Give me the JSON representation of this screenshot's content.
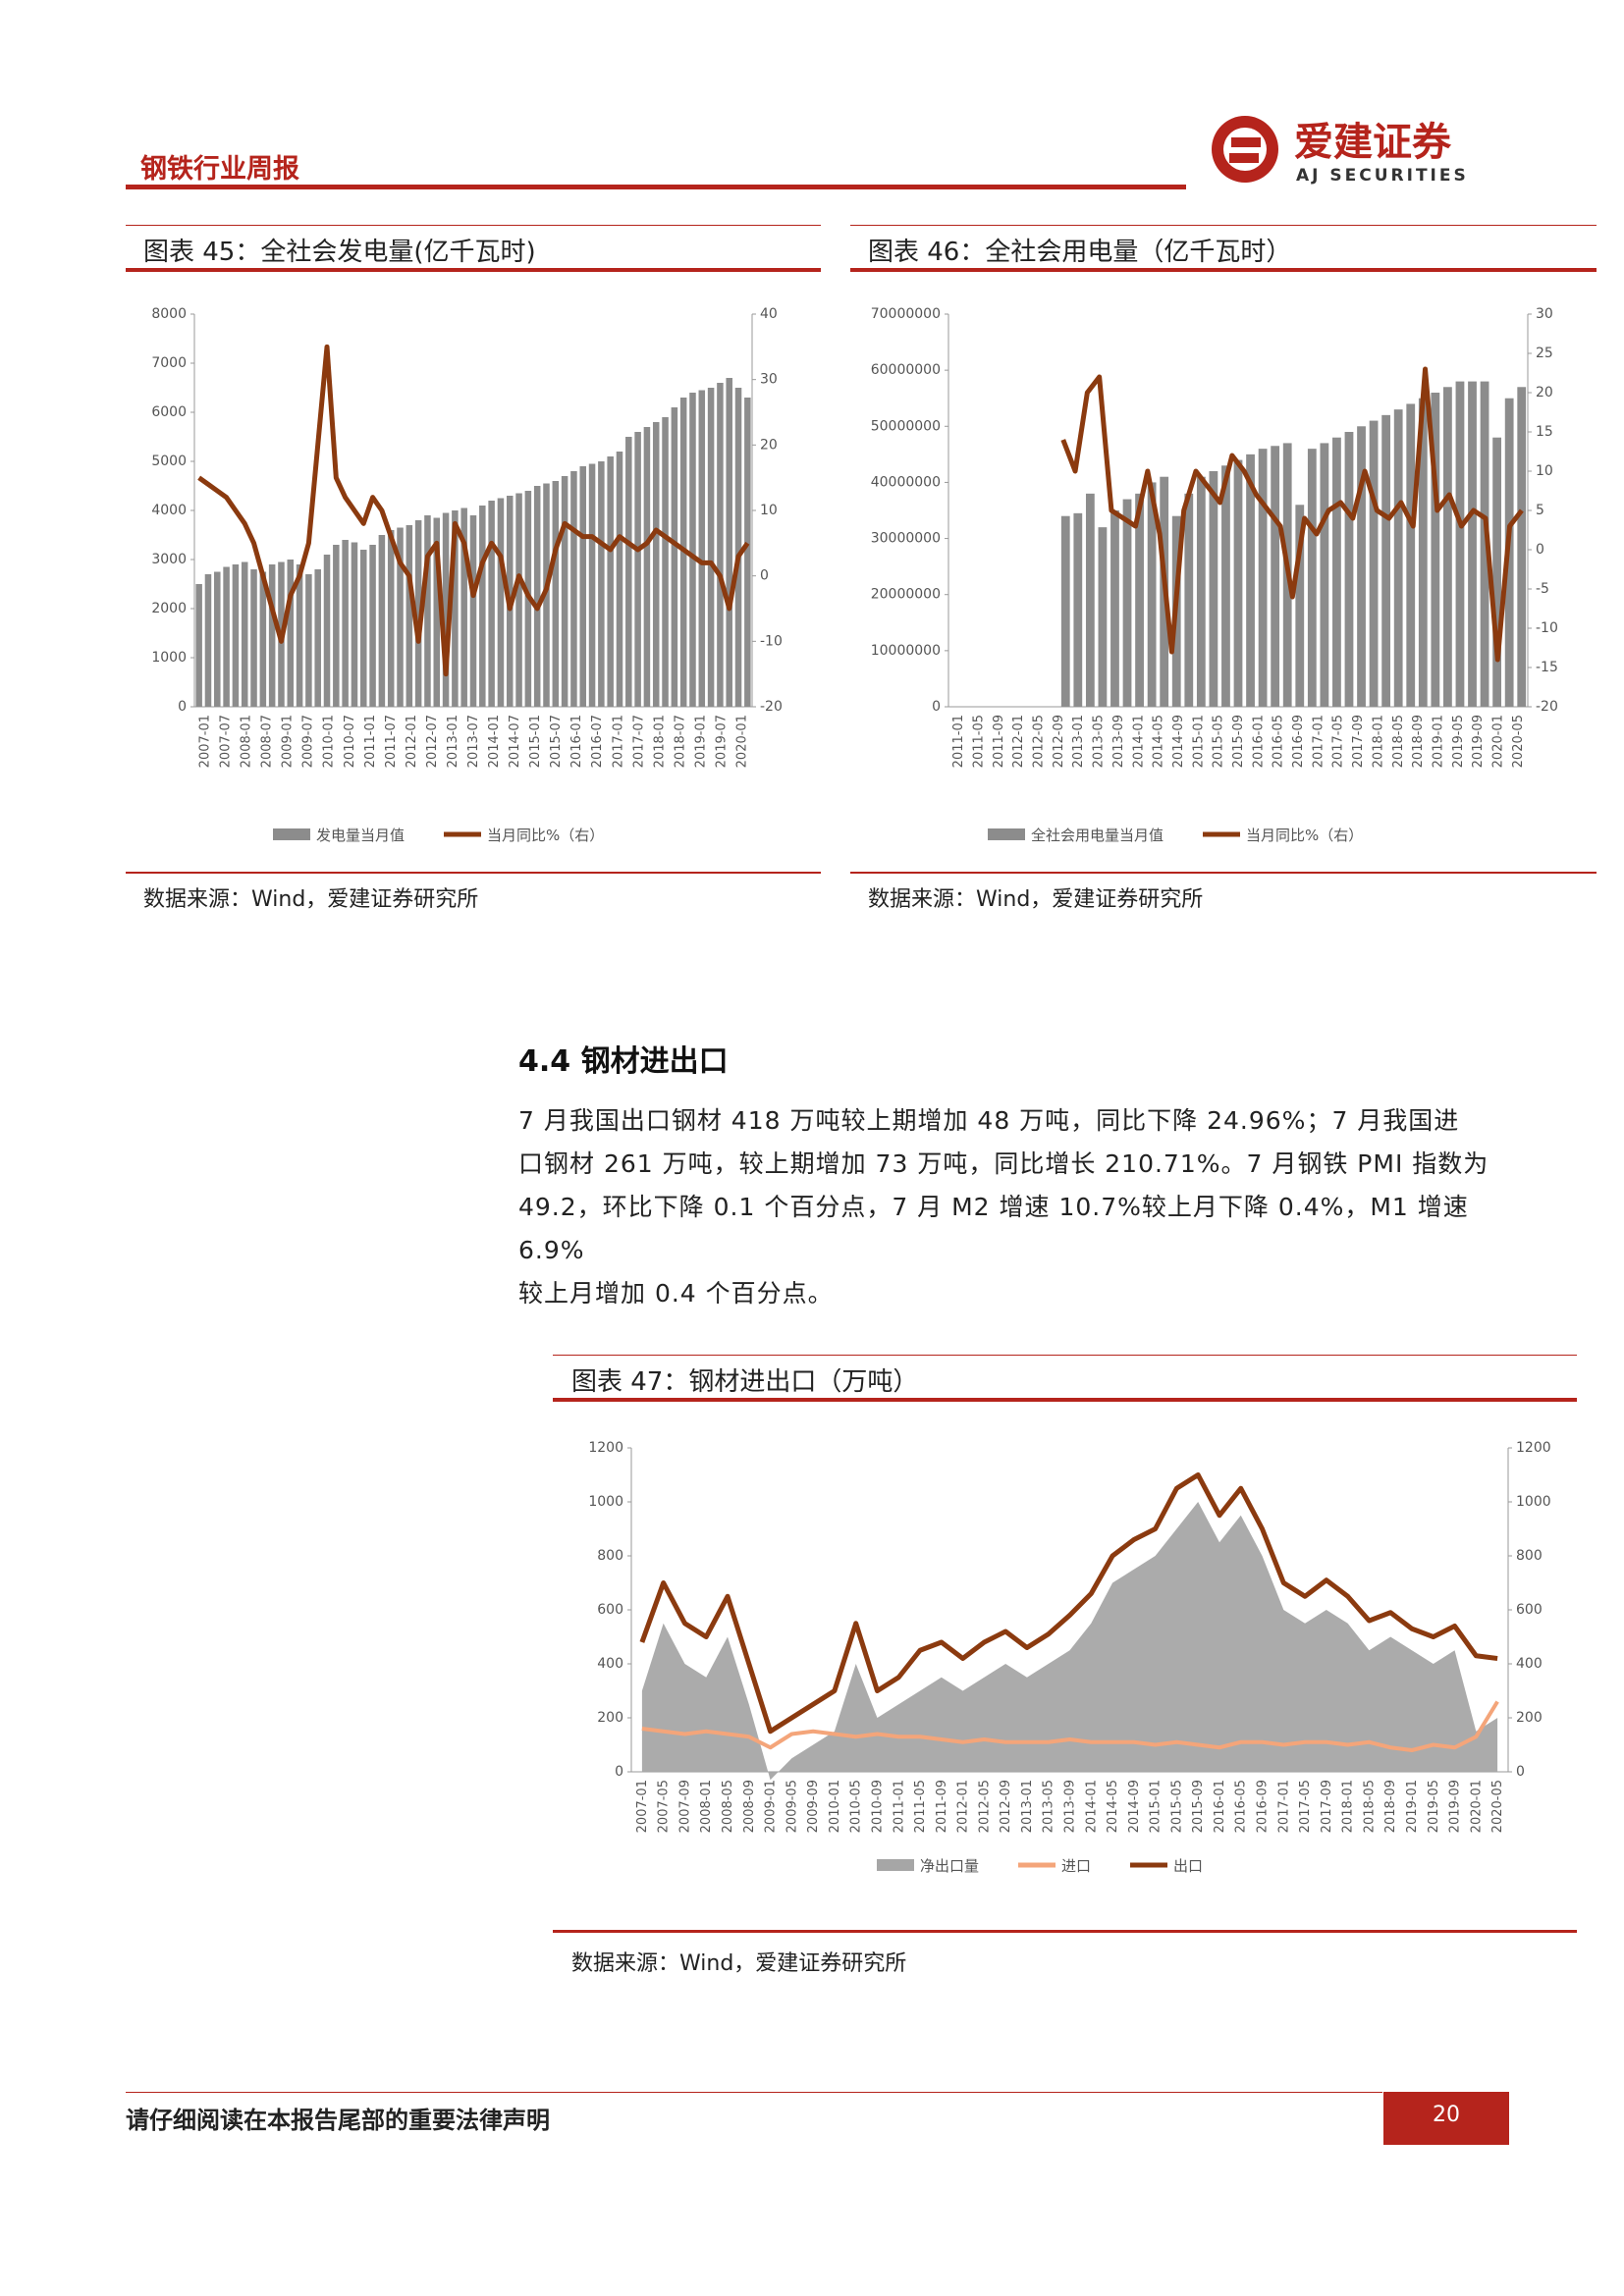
{
  "header": {
    "report_title": "钢铁行业周报",
    "logo_cn": "爱建证券",
    "logo_en": "AJ SECURITIES"
  },
  "fig45": {
    "title": "图表 45：全社会发电量(亿千瓦时)",
    "source": "数据来源：Wind，爱建证券研究所",
    "chart_data": {
      "type": "bar+line",
      "left_axis": {
        "ticks": [
          "0",
          "1000",
          "2000",
          "3000",
          "4000",
          "5000",
          "6000",
          "7000",
          "8000"
        ],
        "range": [
          0,
          8000
        ]
      },
      "right_axis": {
        "ticks": [
          "-20",
          "-10",
          "0",
          "10",
          "20",
          "30",
          "40"
        ],
        "range": [
          -20,
          40
        ]
      },
      "x_ticks": [
        "2007-01",
        "2007-07",
        "2008-01",
        "2008-07",
        "2009-01",
        "2009-07",
        "2010-01",
        "2010-07",
        "2011-01",
        "2011-07",
        "2012-01",
        "2012-07",
        "2013-01",
        "2013-07",
        "2014-01",
        "2014-07",
        "2015-01",
        "2015-07",
        "2016-01",
        "2016-07",
        "2017-01",
        "2017-07",
        "2018-01",
        "2018-07",
        "2019-01",
        "2019-07",
        "2020-01"
      ],
      "series": [
        {
          "name": "发电量当月值",
          "color": "#8c8c8c",
          "values": [
            2500,
            2700,
            2750,
            2850,
            2900,
            2950,
            2800,
            2750,
            2900,
            2950,
            3000,
            2900,
            2700,
            2800,
            3100,
            3300,
            3400,
            3350,
            3200,
            3300,
            3500,
            3600,
            3650,
            3700,
            3800,
            3900,
            3850,
            3950,
            4000,
            4050,
            3900,
            4100,
            4200,
            4250,
            4300,
            4350,
            4400,
            4500,
            4550,
            4600,
            4700,
            4800,
            4900,
            4950,
            5000,
            5100,
            5200,
            5500,
            5600,
            5700,
            5800,
            5900,
            6100,
            6300,
            6400,
            6450,
            6500,
            6600,
            6700,
            6500,
            6300
          ]
        },
        {
          "name": "当月同比%（右）",
          "color": "#8b3a0f",
          "values": [
            15,
            14,
            13,
            12,
            10,
            8,
            5,
            0,
            -5,
            -10,
            -3,
            0,
            5,
            20,
            35,
            15,
            12,
            10,
            8,
            12,
            10,
            6,
            2,
            0,
            -10,
            3,
            5,
            -15,
            8,
            5,
            -3,
            2,
            5,
            3,
            -5,
            0,
            -3,
            -5,
            -2,
            4,
            8,
            7,
            6,
            6,
            5,
            4,
            6,
            5,
            4,
            5,
            7,
            6,
            5,
            4,
            3,
            2,
            2,
            0,
            -5,
            3,
            5
          ]
        }
      ]
    }
  },
  "fig46": {
    "title": "图表 46：全社会用电量（亿千瓦时）",
    "source": "数据来源：Wind，爱建证券研究所",
    "chart_data": {
      "type": "bar+line",
      "left_axis": {
        "ticks": [
          "0",
          "10000000",
          "20000000",
          "30000000",
          "40000000",
          "50000000",
          "60000000",
          "70000000"
        ],
        "range": [
          0,
          70000000
        ]
      },
      "right_axis": {
        "ticks": [
          "-20",
          "-15",
          "-10",
          "-5",
          "0",
          "5",
          "10",
          "15",
          "20",
          "25",
          "30"
        ],
        "range": [
          -20,
          30
        ]
      },
      "x_ticks": [
        "2011-01",
        "2011-05",
        "2011-09",
        "2012-01",
        "2012-05",
        "2012-09",
        "2013-01",
        "2013-05",
        "2013-09",
        "2014-01",
        "2014-05",
        "2014-09",
        "2015-01",
        "2015-05",
        "2015-09",
        "2016-01",
        "2016-05",
        "2016-09",
        "2017-01",
        "2017-05",
        "2017-09",
        "2018-01",
        "2018-05",
        "2018-09",
        "2019-01",
        "2019-05",
        "2019-09",
        "2020-01",
        "2020-05"
      ],
      "series": [
        {
          "name": "全社会用电量当月值",
          "color": "#8c8c8c",
          "values": [
            0,
            0,
            0,
            0,
            0,
            0,
            0,
            0,
            0,
            34000000,
            34500000,
            38000000,
            32000000,
            35000000,
            37000000,
            38000000,
            40000000,
            41000000,
            34000000,
            38000000,
            41000000,
            42000000,
            43000000,
            44000000,
            45000000,
            46000000,
            46500000,
            47000000,
            36000000,
            46000000,
            47000000,
            48000000,
            49000000,
            50000000,
            51000000,
            52000000,
            53000000,
            54000000,
            55000000,
            56000000,
            57000000,
            58000000,
            58000000,
            58000000,
            48000000,
            55000000,
            57000000
          ]
        },
        {
          "name": "当月同比%（右）",
          "color": "#8b3a0f",
          "values": [
            null,
            null,
            null,
            null,
            null,
            null,
            null,
            null,
            null,
            14,
            10,
            20,
            22,
            5,
            4,
            3,
            10,
            2,
            -13,
            5,
            10,
            8,
            6,
            12,
            10,
            7,
            5,
            3,
            -6,
            4,
            2,
            5,
            6,
            4,
            10,
            5,
            4,
            6,
            3,
            23,
            5,
            7,
            3,
            5,
            4,
            -14,
            3,
            5
          ]
        }
      ]
    }
  },
  "section": {
    "title": "4.4 钢材进出口",
    "paragraph": "7 月我国出口钢材 418 万吨较上期增加 48 万吨，同比下降 24.96%；7 月我国进口钢材 261 万吨，较上期增加 73 万吨，同比增长 210.71%。7 月钢铁 PMI 指数为 49.2，环比下降 0.1 个百分点，7 月 M2 增速 10.7%较上月下降 0.4%，M1 增速 6.9%较上月增加 0.4 个百分点。",
    "lines": [
      "7 月我国出口钢材 418 万吨较上期增加 48 万吨，同比下降 24.96%；7 月我国进",
      "口钢材 261 万吨，较上期增加 73 万吨，同比增长 210.71%。7 月钢铁 PMI 指数为",
      "49.2，环比下降 0.1 个百分点，7 月 M2 增速 10.7%较上月下降 0.4%，M1 增速 6.9%",
      "较上月增加 0.4 个百分点。"
    ]
  },
  "fig47": {
    "title": "图表 47：钢材进出口（万吨）",
    "source": "数据来源：Wind，爱建证券研究所",
    "chart_data": {
      "type": "area+line",
      "left_axis": {
        "ticks": [
          "0",
          "200",
          "400",
          "600",
          "800",
          "1000",
          "1200"
        ],
        "range": [
          0,
          1200
        ]
      },
      "right_axis": {
        "ticks": [
          "0",
          "200",
          "400",
          "600",
          "800",
          "1000",
          "1200"
        ],
        "range": [
          0,
          1200
        ]
      },
      "x_ticks": [
        "2007-01",
        "2007-05",
        "2007-09",
        "2008-01",
        "2008-05",
        "2008-09",
        "2009-01",
        "2009-05",
        "2009-09",
        "2010-01",
        "2010-05",
        "2010-09",
        "2011-01",
        "2011-05",
        "2011-09",
        "2012-01",
        "2012-05",
        "2012-09",
        "2013-01",
        "2013-05",
        "2013-09",
        "2014-01",
        "2014-05",
        "2014-09",
        "2015-01",
        "2015-05",
        "2015-09",
        "2016-01",
        "2016-05",
        "2016-09",
        "2017-01",
        "2017-05",
        "2017-09",
        "2018-01",
        "2018-05",
        "2018-09",
        "2019-01",
        "2019-05",
        "2019-09",
        "2020-01",
        "2020-05"
      ],
      "series": [
        {
          "name": "净出口量",
          "color": "#a6a6a6",
          "values": [
            300,
            550,
            400,
            350,
            500,
            250,
            -30,
            50,
            100,
            150,
            400,
            200,
            250,
            300,
            350,
            300,
            350,
            400,
            350,
            400,
            450,
            550,
            700,
            750,
            800,
            900,
            1000,
            850,
            950,
            800,
            600,
            550,
            600,
            550,
            450,
            500,
            450,
            400,
            450,
            150,
            200
          ]
        },
        {
          "name": "进口",
          "color": "#f4a57a",
          "values": [
            160,
            150,
            140,
            150,
            140,
            130,
            90,
            140,
            150,
            140,
            130,
            140,
            130,
            130,
            120,
            110,
            120,
            110,
            110,
            110,
            120,
            110,
            110,
            110,
            100,
            110,
            100,
            90,
            110,
            110,
            100,
            110,
            110,
            100,
            110,
            90,
            80,
            100,
            90,
            130,
            260
          ]
        },
        {
          "name": "出口",
          "color": "#8b3a0f",
          "values": [
            480,
            700,
            550,
            500,
            650,
            400,
            150,
            200,
            250,
            300,
            550,
            300,
            350,
            450,
            480,
            420,
            480,
            520,
            460,
            510,
            580,
            660,
            800,
            860,
            900,
            1050,
            1100,
            950,
            1050,
            900,
            700,
            650,
            710,
            650,
            560,
            590,
            530,
            500,
            540,
            430,
            420
          ]
        }
      ]
    }
  },
  "footer": {
    "notice": "请仔细阅读在本报告尾部的重要法律声明",
    "page_number": "20"
  }
}
